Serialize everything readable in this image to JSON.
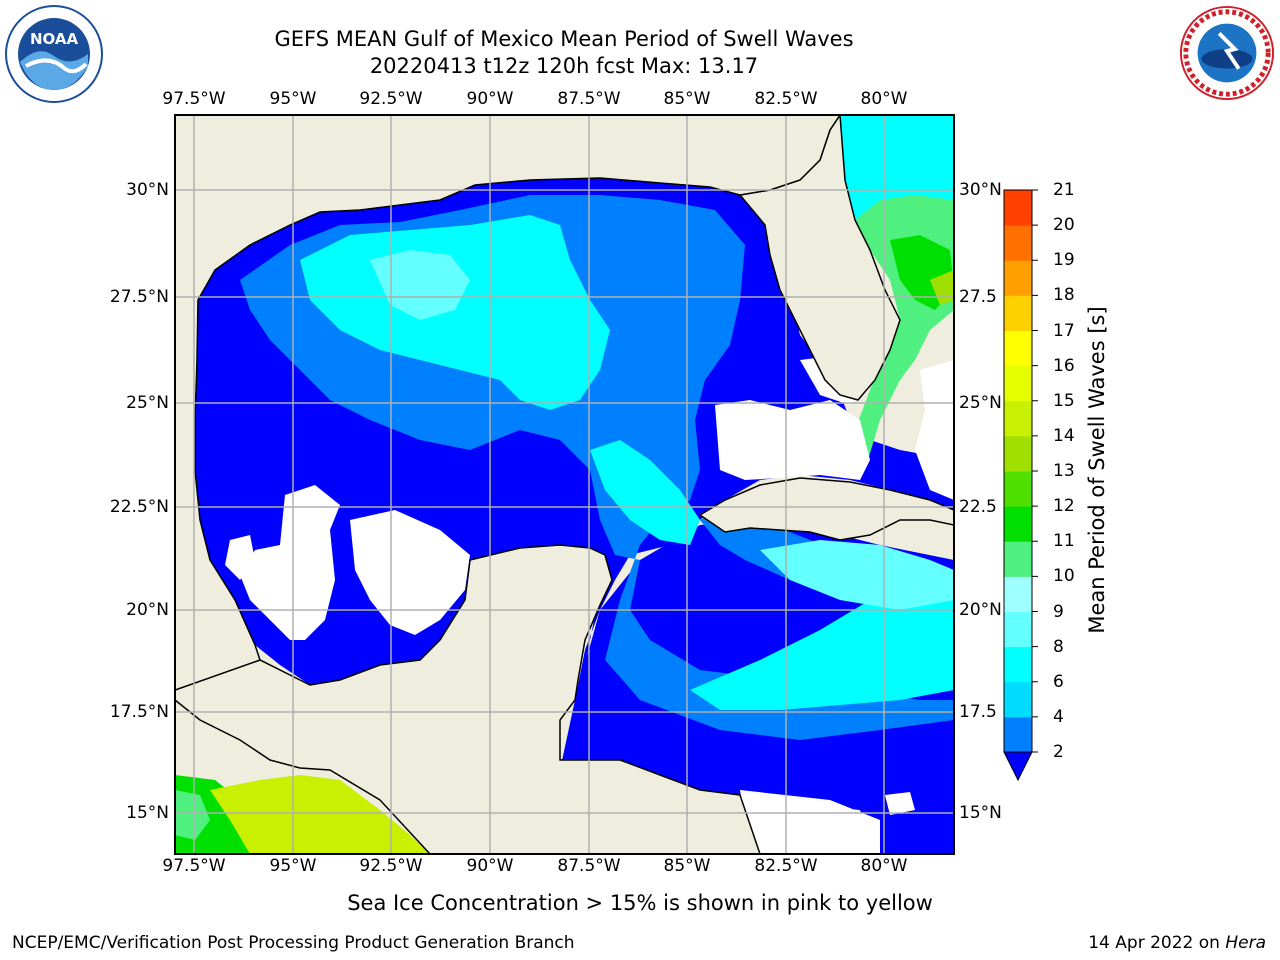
{
  "header": {
    "title_line1": "GEFS MEAN Gulf of Mexico Mean Period of Swell Waves",
    "title_line2": "20220413 t12z 120h fcst   Max: 13.17"
  },
  "map": {
    "lon_labels": [
      "97.5°W",
      "95°W",
      "92.5°W",
      "90°W",
      "87.5°W",
      "85°W",
      "82.5°W",
      "80°W"
    ],
    "lat_labels_left": [
      "30°N",
      "27.5°N",
      "25°N",
      "22.5°N",
      "20°N",
      "17.5°N",
      "15°N"
    ],
    "lat_labels_right": [
      "30°N",
      "27.5",
      "25°N",
      "22.5",
      "20°N",
      "17.5",
      "15°N"
    ],
    "land_color": "#efedde",
    "missing_color": "#ffffff"
  },
  "colorbar": {
    "label": "Mean Period of Swell Waves [s]",
    "ticks": [
      "2",
      "4",
      "6",
      "8",
      "9",
      "10",
      "11",
      "12",
      "13",
      "14",
      "15",
      "16",
      "17",
      "18",
      "19",
      "20",
      "21"
    ],
    "colors": [
      "#0080ff",
      "#00dcff",
      "#00ffff",
      "#64ffff",
      "#a0ffff",
      "#50f080",
      "#00e000",
      "#50e000",
      "#a0e000",
      "#c8f000",
      "#e6ff00",
      "#ffff00",
      "#ffd000",
      "#ffa000",
      "#ff7000",
      "#ff4000",
      "#ff1000"
    ],
    "under_color": "#0000ff"
  },
  "footer": {
    "note": "Sea Ice Concentration > 15% is shown in pink to yellow",
    "left": "NCEP/EMC/Verification Post Processing Product Generation Branch",
    "right_date": "14 Apr 2022 on ",
    "right_host": "Hera"
  },
  "logos": {
    "noaa_text": "NOAA",
    "nws_text": "NATIONAL WEATHER SERVICE"
  }
}
